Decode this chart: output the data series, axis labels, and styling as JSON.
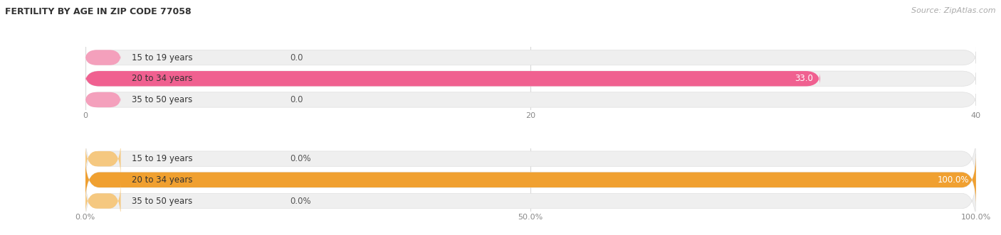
{
  "title": "FERTILITY BY AGE IN ZIP CODE 77058",
  "source": "Source: ZipAtlas.com",
  "top_chart": {
    "categories": [
      "15 to 19 years",
      "20 to 34 years",
      "35 to 50 years"
    ],
    "values": [
      0.0,
      33.0,
      0.0
    ],
    "xlim": [
      0,
      40.0
    ],
    "xticks": [
      0.0,
      20.0,
      40.0
    ],
    "bar_color": "#f06090",
    "bar_color_light": "#f4a0bc",
    "bar_bg_color": "#efefef",
    "bar_border_color": "#e0e0e0",
    "label_inside_color": "#ffffff",
    "label_outside_color": "#555555"
  },
  "bottom_chart": {
    "categories": [
      "15 to 19 years",
      "20 to 34 years",
      "35 to 50 years"
    ],
    "values": [
      0.0,
      100.0,
      0.0
    ],
    "xlim": [
      0,
      100.0
    ],
    "xticks": [
      0.0,
      50.0,
      100.0
    ],
    "xticklabels": [
      "0.0%",
      "50.0%",
      "100.0%"
    ],
    "bar_color": "#f0a030",
    "bar_color_light": "#f5c880",
    "bar_bg_color": "#efefef",
    "bar_border_color": "#e0e0e0",
    "label_inside_color": "#ffffff",
    "label_outside_color": "#555555"
  },
  "title_fontsize": 9,
  "source_fontsize": 8,
  "label_fontsize": 8.5,
  "tick_fontsize": 8,
  "cat_fontsize": 8.5,
  "bar_height": 0.72,
  "background_color": "#ffffff",
  "row_bg_color": "#f5f5f5",
  "row_bg_alt": "#ebebeb"
}
